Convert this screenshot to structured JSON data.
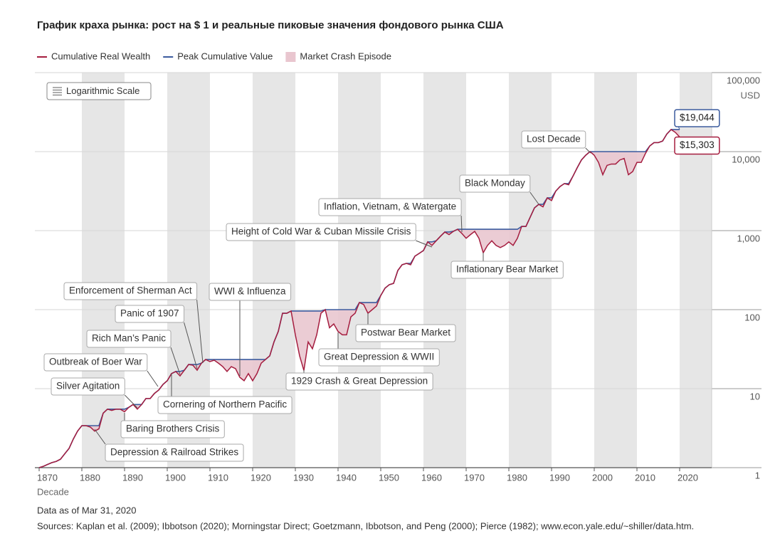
{
  "chart_data": {
    "type": "line",
    "title": "График краха рынка: рост на $ 1 и реальные пиковые значения фондового рынка США",
    "log_scale": true,
    "scale_badge": "Logarithmic Scale",
    "x_label": "Decade",
    "y_unit": "USD",
    "note": "Data as of Mar 31, 2020",
    "sources": "Sources: Kaplan et al. (2009); Ibbotson (2020); Morningstar Direct; Goetzmann, Ibbotson, and Peng (2000); Pierce (1982); www.econ.yale.edu/~shiller/data.htm.",
    "crash_label": "Market Crash Episode",
    "crash_color": "#e9c6cf",
    "band_color": "#e6e6e6",
    "xlim": [
      1869,
      2027.5
    ],
    "xticks": [
      1870,
      1880,
      1890,
      1900,
      1910,
      1920,
      1930,
      1940,
      1950,
      1960,
      1970,
      1980,
      1990,
      2000,
      2010,
      2020
    ],
    "ylim": [
      1,
      100000
    ],
    "yticks": [
      1,
      10,
      100,
      {
        "value": 1000,
        "label": "1,000"
      },
      {
        "value": 10000,
        "label": "10,000"
      },
      {
        "value": 100000,
        "label": "100,000"
      }
    ],
    "grid": true,
    "x": [
      1870,
      1871,
      1872,
      1873,
      1874,
      1875,
      1876,
      1877,
      1878,
      1879,
      1880,
      1881,
      1882,
      1883,
      1884,
      1885,
      1886,
      1887,
      1888,
      1889,
      1890,
      1891,
      1892,
      1893,
      1894,
      1895,
      1896,
      1897,
      1898,
      1899,
      1900,
      1901,
      1902,
      1903,
      1904,
      1905,
      1906,
      1907,
      1908,
      1909,
      1910,
      1911,
      1912,
      1913,
      1914,
      1915,
      1916,
      1917,
      1918,
      1919,
      1920,
      1921,
      1922,
      1923,
      1924,
      1925,
      1926,
      1927,
      1928,
      1929,
      1930,
      1931,
      1932,
      1933,
      1934,
      1935,
      1936,
      1937,
      1938,
      1939,
      1940,
      1941,
      1942,
      1943,
      1944,
      1945,
      1946,
      1947,
      1948,
      1949,
      1950,
      1951,
      1952,
      1953,
      1954,
      1955,
      1956,
      1957,
      1958,
      1959,
      1960,
      1961,
      1962,
      1963,
      1964,
      1965,
      1966,
      1967,
      1968,
      1969,
      1970,
      1971,
      1972,
      1973,
      1974,
      1975,
      1976,
      1977,
      1978,
      1979,
      1980,
      1981,
      1982,
      1983,
      1984,
      1985,
      1986,
      1987,
      1988,
      1989,
      1990,
      1991,
      1992,
      1993,
      1994,
      1995,
      1996,
      1997,
      1998,
      1999,
      2000,
      2001,
      2002,
      2003,
      2004,
      2005,
      2006,
      2007,
      2008,
      2009,
      2010,
      2011,
      2012,
      2013,
      2014,
      2015,
      2016,
      2017,
      2018,
      2019,
      2020
    ],
    "series": [
      {
        "name": "Cumulative Real Wealth",
        "color": "#a51d3f",
        "values": [
          1.0,
          1.04,
          1.1,
          1.16,
          1.2,
          1.28,
          1.5,
          1.75,
          2.3,
          2.9,
          3.4,
          3.4,
          3.26,
          2.9,
          3.1,
          4.9,
          5.5,
          5.3,
          5.5,
          5.5,
          5.1,
          5.8,
          6.3,
          5.5,
          6.3,
          7.5,
          7.5,
          8.7,
          9.6,
          11.3,
          12.6,
          15.5,
          16.5,
          14.5,
          17.1,
          20.2,
          19.8,
          17.1,
          21,
          23.4,
          22,
          22.9,
          21,
          19,
          16.5,
          19,
          17.9,
          13.9,
          12.6,
          15.5,
          12.6,
          15.5,
          21,
          23.4,
          26,
          39,
          53,
          90,
          90,
          96,
          48,
          26,
          17,
          39,
          32,
          48,
          90,
          100,
          59,
          66,
          53,
          48,
          48,
          81,
          90,
          123,
          116,
          90,
          100,
          111,
          151,
          187,
          207,
          215,
          313,
          370,
          385,
          370,
          475,
          515,
          560,
          720,
          650,
          745,
          850,
          960,
          890,
          980,
          1040,
          920,
          800,
          890,
          980,
          800,
          525,
          650,
          745,
          650,
          610,
          650,
          720,
          650,
          800,
          1130,
          1130,
          1480,
          1940,
          2150,
          2000,
          2600,
          2400,
          3170,
          3620,
          3940,
          3800,
          4870,
          6240,
          7840,
          9000,
          10000,
          9000,
          7300,
          5100,
          6700,
          6960,
          6960,
          7840,
          8200,
          5100,
          5600,
          7300,
          7300,
          9500,
          11800,
          13000,
          13000,
          13600,
          16700,
          19044,
          17500,
          15303
        ]
      },
      {
        "name": "Peak Cumulative Value",
        "color": "#3b5b9e",
        "values": [
          1.0,
          1.04,
          1.1,
          1.16,
          1.2,
          1.28,
          1.5,
          1.75,
          2.3,
          2.9,
          3.4,
          3.4,
          3.4,
          3.4,
          3.4,
          4.9,
          5.5,
          5.5,
          5.5,
          5.5,
          5.5,
          5.8,
          6.3,
          6.3,
          6.3,
          7.5,
          7.5,
          8.7,
          9.6,
          11.3,
          12.6,
          15.5,
          16.5,
          16.5,
          17.1,
          20.2,
          20.2,
          20.2,
          21,
          23.4,
          23.4,
          23.4,
          23.4,
          23.4,
          23.4,
          23.4,
          23.4,
          23.4,
          23.4,
          23.4,
          23.4,
          23.4,
          23.4,
          23.4,
          26,
          39,
          53,
          90,
          90,
          96,
          96,
          96,
          96,
          96,
          96,
          96,
          96,
          100,
          100,
          100,
          100,
          100,
          100,
          100,
          100,
          123,
          123,
          123,
          123,
          123,
          151,
          187,
          207,
          215,
          313,
          370,
          385,
          385,
          475,
          515,
          560,
          720,
          720,
          745,
          850,
          960,
          960,
          980,
          1040,
          1040,
          1040,
          1040,
          1040,
          1040,
          1040,
          1040,
          1040,
          1040,
          1040,
          1040,
          1040,
          1040,
          1040,
          1130,
          1130,
          1480,
          1940,
          2150,
          2150,
          2600,
          2600,
          3170,
          3620,
          3940,
          3940,
          4870,
          6240,
          7840,
          9000,
          10000,
          10000,
          10000,
          10000,
          10000,
          10000,
          10000,
          10000,
          10000,
          10000,
          10000,
          10000,
          10000,
          10000,
          11800,
          13000,
          13000,
          13600,
          16700,
          19044,
          19044,
          19044
        ]
      }
    ],
    "final_labels": [
      {
        "value": 19044,
        "label": "$19,044"
      },
      {
        "value": 15303,
        "label": "$15,303"
      }
    ],
    "annotations": [
      "Silver Agitation",
      "Outbreak of Boer War",
      "Rich Man’s Panic",
      "Panic of 1907",
      "Enforcement of Sherman Act",
      "WWI & Influenza",
      "Cornering of Northern Pacific",
      "Baring Brothers Crisis",
      "Depression & Railroad Strikes",
      "1929 Crash & Great Depression",
      "Great Depression & WWII",
      "Postwar Bear Market",
      "Height of Cold War & Cuban Missile Crisis",
      "Inflation, Vietnam, & Watergate",
      "Inflationary Bear Market",
      "Black Monday",
      "Lost Decade"
    ]
  }
}
